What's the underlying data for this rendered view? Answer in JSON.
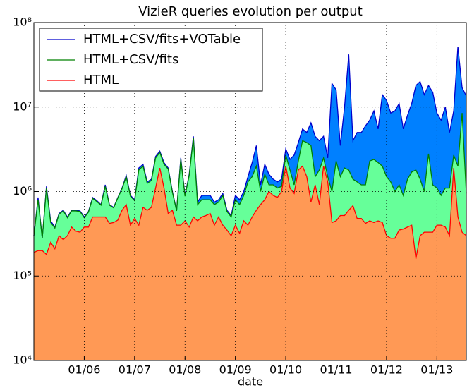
{
  "chart_data": {
    "type": "area",
    "title": "VizieR queries evolution per output",
    "xlabel": "date",
    "x": [
      "2005-01",
      "2005-02",
      "2005-03",
      "2005-04",
      "2005-05",
      "2005-06",
      "2005-07",
      "2005-08",
      "2005-09",
      "2005-10",
      "2005-11",
      "2005-12",
      "2006-01",
      "2006-02",
      "2006-03",
      "2006-04",
      "2006-05",
      "2006-06",
      "2006-07",
      "2006-08",
      "2006-09",
      "2006-10",
      "2006-11",
      "2006-12",
      "2007-01",
      "2007-02",
      "2007-03",
      "2007-04",
      "2007-05",
      "2007-06",
      "2007-07",
      "2007-08",
      "2007-09",
      "2007-10",
      "2007-11",
      "2007-12",
      "2008-01",
      "2008-02",
      "2008-03",
      "2008-04",
      "2008-05",
      "2008-06",
      "2008-07",
      "2008-08",
      "2008-09",
      "2008-10",
      "2008-11",
      "2008-12",
      "2009-01",
      "2009-02",
      "2009-03",
      "2009-04",
      "2009-05",
      "2009-06",
      "2009-07",
      "2009-08",
      "2009-09",
      "2009-10",
      "2009-11",
      "2009-12",
      "2010-01",
      "2010-02",
      "2010-03",
      "2010-04",
      "2010-05",
      "2010-06",
      "2010-07",
      "2010-08",
      "2010-09",
      "2010-10",
      "2010-11",
      "2010-12",
      "2011-01",
      "2011-02",
      "2011-03",
      "2011-04",
      "2011-05",
      "2011-06",
      "2011-07",
      "2011-08",
      "2011-09",
      "2011-10",
      "2011-11",
      "2011-12",
      "2012-01",
      "2012-02",
      "2012-03",
      "2012-04",
      "2012-05",
      "2012-06",
      "2012-07",
      "2012-08",
      "2012-09",
      "2012-10",
      "2012-11",
      "2012-12",
      "2013-01",
      "2013-02",
      "2013-03",
      "2013-04",
      "2013-05",
      "2013-06",
      "2013-07",
      "2013-08"
    ],
    "series": [
      {
        "name": "HTML+CSV/fits+VOTable",
        "color": "#0000cc",
        "fill": "#0080ff",
        "values": [
          300000,
          850000,
          280000,
          1150000,
          450000,
          380000,
          550000,
          600000,
          500000,
          600000,
          600000,
          590000,
          500000,
          580000,
          850000,
          780000,
          700000,
          1200000,
          700000,
          650000,
          850000,
          1100000,
          1550000,
          900000,
          800000,
          1900000,
          2100000,
          1300000,
          1400000,
          2600000,
          3000000,
          2200000,
          1900000,
          1000000,
          600000,
          2500000,
          900000,
          1600000,
          4500000,
          750000,
          900000,
          900000,
          900000,
          750000,
          800000,
          950000,
          600000,
          520000,
          900000,
          800000,
          1000000,
          1500000,
          2200000,
          3500000,
          1200000,
          2100000,
          1600000,
          1400000,
          1300000,
          1400000,
          3200000,
          2400000,
          2700000,
          3800000,
          5500000,
          5000000,
          6500000,
          4500000,
          4000000,
          4500000,
          2500000,
          19000000,
          16000000,
          3500000,
          10000000,
          42000000,
          4000000,
          5000000,
          5000000,
          6000000,
          7000000,
          9000000,
          5500000,
          14000000,
          12000000,
          8500000,
          9000000,
          11000000,
          5500000,
          8000000,
          11000000,
          18000000,
          20000000,
          14000000,
          18000000,
          15000000,
          8500000,
          7000000,
          10000000,
          5000000,
          9000000,
          52000000,
          17000000,
          13500000
        ]
      },
      {
        "name": "HTML+CSV/fits",
        "color": "#008000",
        "fill": "#66ff99",
        "values": [
          300000,
          800000,
          280000,
          1100000,
          430000,
          370000,
          540000,
          590000,
          490000,
          590000,
          590000,
          580000,
          490000,
          570000,
          830000,
          760000,
          690000,
          1150000,
          690000,
          640000,
          840000,
          1080000,
          1500000,
          880000,
          780000,
          1800000,
          2000000,
          1250000,
          1350000,
          2500000,
          2900000,
          2100000,
          1850000,
          980000,
          590000,
          2400000,
          880000,
          1550000,
          4300000,
          700000,
          800000,
          800000,
          800000,
          700000,
          750000,
          900000,
          580000,
          500000,
          800000,
          700000,
          900000,
          1300000,
          1500000,
          2000000,
          1000000,
          1600000,
          1200000,
          1200000,
          1100000,
          1150000,
          2700000,
          1800000,
          1200000,
          2300000,
          4000000,
          3800000,
          3500000,
          1500000,
          1800000,
          2500000,
          1500000,
          1000000,
          2300000,
          1500000,
          1900000,
          1800000,
          1400000,
          1300000,
          1200000,
          1200000,
          2300000,
          2400000,
          2200000,
          2000000,
          1500000,
          1300000,
          1000000,
          1200000,
          900000,
          1400000,
          1700000,
          1800000,
          1400000,
          1000000,
          2800000,
          1200000,
          1100000,
          900000,
          1100000,
          1100000,
          2700000,
          2000000,
          8500000,
          950000
        ]
      },
      {
        "name": "HTML",
        "color": "#ff0000",
        "fill": "#ff9955",
        "values": [
          190000,
          200000,
          200000,
          180000,
          250000,
          210000,
          300000,
          270000,
          300000,
          380000,
          340000,
          330000,
          380000,
          380000,
          500000,
          500000,
          500000,
          500000,
          420000,
          430000,
          460000,
          600000,
          700000,
          400000,
          480000,
          400000,
          650000,
          600000,
          650000,
          1100000,
          1900000,
          1100000,
          550000,
          600000,
          400000,
          400000,
          450000,
          380000,
          500000,
          450000,
          500000,
          520000,
          550000,
          400000,
          500000,
          400000,
          350000,
          300000,
          400000,
          320000,
          450000,
          400000,
          500000,
          600000,
          700000,
          800000,
          1000000,
          900000,
          850000,
          1000000,
          2000000,
          1100000,
          950000,
          1800000,
          2000000,
          1500000,
          750000,
          1200000,
          700000,
          2000000,
          1300000,
          430000,
          450000,
          520000,
          520000,
          600000,
          680000,
          480000,
          480000,
          420000,
          450000,
          430000,
          450000,
          430000,
          300000,
          280000,
          280000,
          350000,
          360000,
          380000,
          400000,
          160000,
          300000,
          330000,
          330000,
          330000,
          400000,
          400000,
          380000,
          300000,
          1900000,
          500000,
          330000,
          300000
        ]
      }
    ],
    "xlim": [
      "2005-01",
      "2013-08"
    ],
    "xticks": [
      {
        "value": "2006-01",
        "label": "01/06"
      },
      {
        "value": "2007-01",
        "label": "01/07"
      },
      {
        "value": "2008-01",
        "label": "01/08"
      },
      {
        "value": "2009-01",
        "label": "01/09"
      },
      {
        "value": "2010-01",
        "label": "01/10"
      },
      {
        "value": "2011-01",
        "label": "01/11"
      },
      {
        "value": "2012-01",
        "label": "01/12"
      },
      {
        "value": "2013-01",
        "label": "01/13"
      }
    ],
    "ylim": [
      10000,
      100000000
    ],
    "yticks": [
      {
        "value": 10000,
        "label": "10⁴"
      },
      {
        "value": 100000,
        "label": "10⁵"
      },
      {
        "value": 1000000,
        "label": "10⁶"
      },
      {
        "value": 10000000,
        "label": "10⁷"
      },
      {
        "value": 100000000,
        "label": "10⁸"
      }
    ],
    "log_y": true,
    "grid": true,
    "legend": "upper left"
  }
}
